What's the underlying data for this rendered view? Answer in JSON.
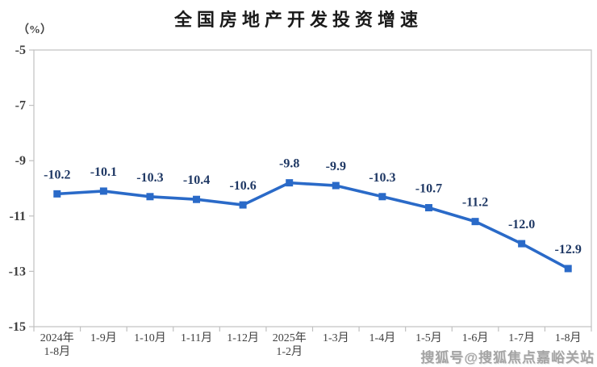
{
  "page": {
    "background": "#FFFFFF"
  },
  "chart_data": {
    "type": "line",
    "title": "全国房地产开发投资增速",
    "unit_label": "（%）",
    "categories": [
      [
        "2024年",
        "1-8月"
      ],
      [
        "1-9月"
      ],
      [
        "1-10月"
      ],
      [
        "1-11月"
      ],
      [
        "1-12月"
      ],
      [
        "2025年",
        "1-2月"
      ],
      [
        "1-3月"
      ],
      [
        "1-4月"
      ],
      [
        "1-5月"
      ],
      [
        "1-6月"
      ],
      [
        "1-7月"
      ],
      [
        "1-8月"
      ]
    ],
    "values": [
      -10.2,
      -10.1,
      -10.3,
      -10.4,
      -10.6,
      -9.8,
      -9.9,
      -10.3,
      -10.7,
      -11.2,
      -12.0,
      -12.9
    ],
    "data_labels": [
      "-10.2",
      "-10.1",
      "-10.3",
      "-10.4",
      "-10.6",
      "-9.8",
      "-9.9",
      "-10.3",
      "-10.7",
      "-11.2",
      "-12.0",
      "-12.9"
    ],
    "xlabel": "",
    "ylabel": "（%）",
    "y_ticks": [
      -5,
      -7,
      -9,
      -11,
      -13,
      -15
    ],
    "ylim": [
      -15,
      -5
    ],
    "grid": false,
    "legend": "none",
    "marker_shape": "square",
    "colors": {
      "line": "#2A6AC8",
      "marker": "#2A6AC8",
      "data_label": "#1F3864",
      "axis_label": "#404040",
      "axis_line": "#C0C0C0",
      "title": "#1A1A1A",
      "watermark": "#9B9B9B"
    }
  },
  "watermark": {
    "text": "搜狐号@搜狐焦点嘉峪关站"
  }
}
